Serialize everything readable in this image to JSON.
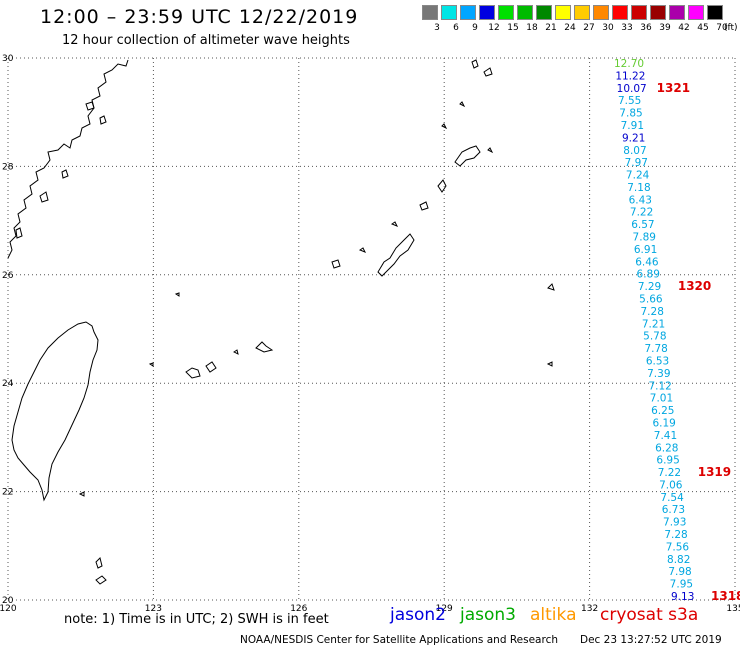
{
  "header": {
    "title": "12:00 – 23:59 UTC 12/22/2019",
    "subtitle": "12 hour collection of altimeter wave heights"
  },
  "legend": {
    "bins": [
      {
        "label": "3",
        "color": "#777777"
      },
      {
        "label": "6",
        "color": "#00e5e5"
      },
      {
        "label": "9",
        "color": "#00a6ff"
      },
      {
        "label": "12",
        "color": "#0000e0"
      },
      {
        "label": "15",
        "color": "#00e000"
      },
      {
        "label": "18",
        "color": "#00bb00"
      },
      {
        "label": "21",
        "color": "#008800"
      },
      {
        "label": "24",
        "color": "#ffff00"
      },
      {
        "label": "27",
        "color": "#ffcc00"
      },
      {
        "label": "30",
        "color": "#ff8800"
      },
      {
        "label": "33",
        "color": "#ff0000"
      },
      {
        "label": "36",
        "color": "#cc0000"
      },
      {
        "label": "39",
        "color": "#990000"
      },
      {
        "label": "42",
        "color": "#aa00aa"
      },
      {
        "label": "45",
        "color": "#ff00ff"
      },
      {
        "label": "70",
        "color": "#000000"
      }
    ],
    "unit": "(ft)"
  },
  "map": {
    "lon_range": [
      120,
      135
    ],
    "lat_range": [
      20,
      30
    ],
    "lon_ticks": [
      "120",
      "123",
      "126",
      "129",
      "132",
      "135"
    ],
    "lat_ticks": [
      "30",
      "28",
      "26",
      "24",
      "22",
      "20"
    ]
  },
  "track": {
    "points": [
      {
        "value": "12.70",
        "color": "#66cc33"
      },
      {
        "value": "11.22",
        "color": "#0000cc"
      },
      {
        "value": "10.07",
        "color": "#0000cc"
      },
      {
        "value": "7.55",
        "color": "#00a6e0"
      },
      {
        "value": "7.85",
        "color": "#00a6e0"
      },
      {
        "value": "7.91",
        "color": "#00a6e0"
      },
      {
        "value": "9.21",
        "color": "#0000cc"
      },
      {
        "value": "8.07",
        "color": "#00a6e0"
      },
      {
        "value": "7.97",
        "color": "#00a6e0"
      },
      {
        "value": "7.24",
        "color": "#00a6e0"
      },
      {
        "value": "7.18",
        "color": "#00a6e0"
      },
      {
        "value": "6.43",
        "color": "#00a6e0"
      },
      {
        "value": "7.22",
        "color": "#00a6e0"
      },
      {
        "value": "6.57",
        "color": "#00a6e0"
      },
      {
        "value": "7.89",
        "color": "#00a6e0"
      },
      {
        "value": "6.91",
        "color": "#00a6e0"
      },
      {
        "value": "6.46",
        "color": "#00a6e0"
      },
      {
        "value": "6.89",
        "color": "#00a6e0"
      },
      {
        "value": "7.29",
        "color": "#00a6e0"
      },
      {
        "value": "5.66",
        "color": "#00a6e0"
      },
      {
        "value": "7.28",
        "color": "#00a6e0"
      },
      {
        "value": "7.21",
        "color": "#00a6e0"
      },
      {
        "value": "5.78",
        "color": "#00a6e0"
      },
      {
        "value": "7.78",
        "color": "#00a6e0"
      },
      {
        "value": "6.53",
        "color": "#00a6e0"
      },
      {
        "value": "7.39",
        "color": "#00a6e0"
      },
      {
        "value": "7.12",
        "color": "#00a6e0"
      },
      {
        "value": "7.01",
        "color": "#00a6e0"
      },
      {
        "value": "6.25",
        "color": "#00a6e0"
      },
      {
        "value": "6.19",
        "color": "#00a6e0"
      },
      {
        "value": "7.41",
        "color": "#00a6e0"
      },
      {
        "value": "6.28",
        "color": "#00a6e0"
      },
      {
        "value": "6.95",
        "color": "#00a6e0"
      },
      {
        "value": "7.22",
        "color": "#00a6e0"
      },
      {
        "value": "7.06",
        "color": "#00a6e0"
      },
      {
        "value": "7.54",
        "color": "#00a6e0"
      },
      {
        "value": "6.73",
        "color": "#00a6e0"
      },
      {
        "value": "7.93",
        "color": "#00a6e0"
      },
      {
        "value": "7.28",
        "color": "#00a6e0"
      },
      {
        "value": "7.56",
        "color": "#00a6e0"
      },
      {
        "value": "8.82",
        "color": "#00a6e0"
      },
      {
        "value": "7.98",
        "color": "#00a6e0"
      },
      {
        "value": "7.95",
        "color": "#00a6e0"
      },
      {
        "value": "9.13",
        "color": "#0000cc"
      }
    ],
    "time_labels": [
      {
        "value": "1321",
        "index": 2
      },
      {
        "value": "1320",
        "index": 18
      },
      {
        "value": "1319",
        "index": 33
      },
      {
        "value": "1318",
        "index": 43
      }
    ],
    "time_label_color": "#dd0000"
  },
  "note": "note: 1) Time is in UTC; 2) SWH is in feet",
  "satellites": [
    {
      "name": "jason2",
      "color": "#0000dd"
    },
    {
      "name": "jason3",
      "color": "#00aa00"
    },
    {
      "name": "altika",
      "color": "#ff9900"
    },
    {
      "name": "cryosat s3a",
      "color": "#dd0000"
    }
  ],
  "footer": {
    "credit": "NOAA/NESDIS Center for Satellite Applications and Research",
    "generated": "Dec 23 13:27:52 UTC 2019"
  }
}
